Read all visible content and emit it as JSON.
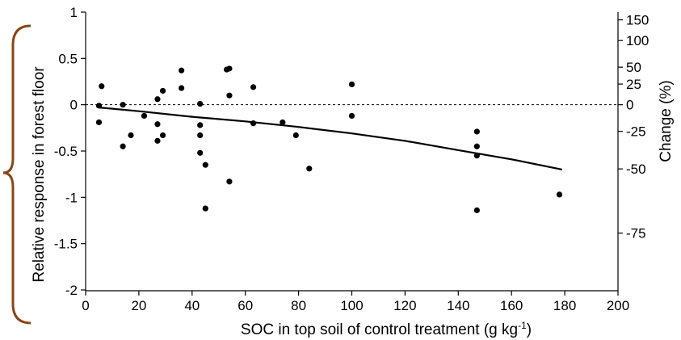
{
  "chart_data": {
    "type": "scatter",
    "title": "",
    "xlabel": "SOC in top soil of control treatment (g kg",
    "xlabel_sup": "-1",
    "xlabel_suffix": ")",
    "ylabel": "Relative response in forest floor",
    "y2label": "Change (%)",
    "xlim": [
      0,
      200
    ],
    "ylim": [
      -2,
      1
    ],
    "x_ticks": [
      0,
      20,
      40,
      60,
      80,
      100,
      120,
      140,
      160,
      180,
      200
    ],
    "x_tick_labels": [
      "0",
      "20",
      "40",
      "60",
      "80",
      "100",
      "120",
      "140",
      "160",
      "180",
      "200"
    ],
    "y_ticks": [
      1,
      0.5,
      0,
      -0.5,
      -1,
      -1.5,
      -2
    ],
    "y_tick_labels": [
      "1",
      "0.5",
      "0",
      "-0.5",
      "-1",
      "-1.5",
      "-2"
    ],
    "y2_ticks": [
      {
        "value": 150,
        "label": "150"
      },
      {
        "value": 100,
        "label": "100"
      },
      {
        "value": 50,
        "label": "50"
      },
      {
        "value": 25,
        "label": "25"
      },
      {
        "value": 0,
        "label": "0"
      },
      {
        "value": -25,
        "label": "-25"
      },
      {
        "value": -50,
        "label": "-50"
      },
      {
        "value": -75,
        "label": "-75"
      }
    ],
    "reference_line_y": 0,
    "points": [
      {
        "x": 5,
        "y": -0.01
      },
      {
        "x": 5,
        "y": -0.19
      },
      {
        "x": 6,
        "y": 0.2
      },
      {
        "x": 14,
        "y": 0.0
      },
      {
        "x": 14,
        "y": -0.45
      },
      {
        "x": 17,
        "y": -0.33
      },
      {
        "x": 22,
        "y": -0.12
      },
      {
        "x": 27,
        "y": 0.06
      },
      {
        "x": 27,
        "y": -0.21
      },
      {
        "x": 27,
        "y": -0.39
      },
      {
        "x": 29,
        "y": 0.15
      },
      {
        "x": 29,
        "y": -0.33
      },
      {
        "x": 36,
        "y": 0.37
      },
      {
        "x": 36,
        "y": 0.18
      },
      {
        "x": 43,
        "y": 0.01
      },
      {
        "x": 43,
        "y": -0.22
      },
      {
        "x": 43,
        "y": -0.33
      },
      {
        "x": 43,
        "y": -0.52
      },
      {
        "x": 45,
        "y": -0.65
      },
      {
        "x": 45,
        "y": -1.12
      },
      {
        "x": 53,
        "y": 0.38
      },
      {
        "x": 54,
        "y": 0.39
      },
      {
        "x": 54,
        "y": 0.1
      },
      {
        "x": 54,
        "y": -0.83
      },
      {
        "x": 63,
        "y": 0.19
      },
      {
        "x": 63,
        "y": -0.2
      },
      {
        "x": 74,
        "y": -0.19
      },
      {
        "x": 79,
        "y": -0.33
      },
      {
        "x": 84,
        "y": -0.69
      },
      {
        "x": 100,
        "y": 0.22
      },
      {
        "x": 100,
        "y": -0.12
      },
      {
        "x": 147,
        "y": -0.29
      },
      {
        "x": 147,
        "y": -0.45
      },
      {
        "x": 147,
        "y": -0.55
      },
      {
        "x": 147,
        "y": -1.14
      },
      {
        "x": 178,
        "y": -0.97
      }
    ],
    "fit_line": [
      {
        "x": 5,
        "y": -0.03
      },
      {
        "x": 20,
        "y": -0.07
      },
      {
        "x": 40,
        "y": -0.13
      },
      {
        "x": 60,
        "y": -0.18
      },
      {
        "x": 80,
        "y": -0.24
      },
      {
        "x": 100,
        "y": -0.31
      },
      {
        "x": 120,
        "y": -0.39
      },
      {
        "x": 140,
        "y": -0.49
      },
      {
        "x": 160,
        "y": -0.59
      },
      {
        "x": 179,
        "y": -0.7
      }
    ],
    "bracket_color": "#8B4513"
  }
}
